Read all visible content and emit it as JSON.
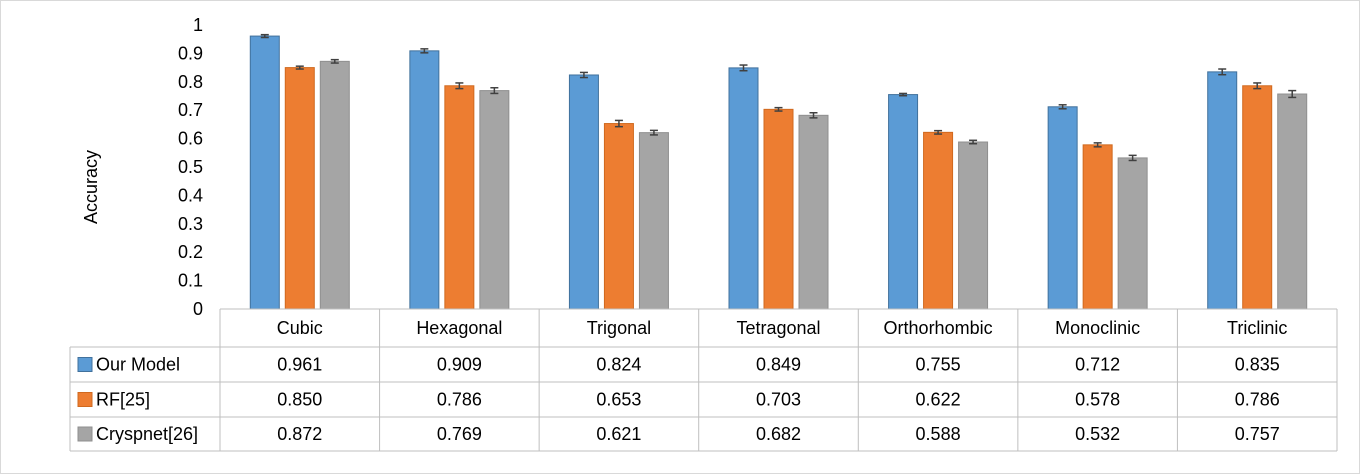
{
  "chart_data": {
    "type": "bar",
    "ylabel": "Accuracy",
    "ylim": [
      0,
      1
    ],
    "yticks": [
      "0",
      "0.1",
      "0.2",
      "0.3",
      "0.4",
      "0.5",
      "0.6",
      "0.7",
      "0.8",
      "0.9",
      "1"
    ],
    "categories": [
      "Cubic",
      "Hexagonal",
      "Trigonal",
      "Tetragonal",
      "Orthorhombic",
      "Monoclinic",
      "Triclinic"
    ],
    "series": [
      {
        "name": "Our Model",
        "color": "#5b9bd5",
        "values": [
          0.961,
          0.909,
          0.824,
          0.849,
          0.755,
          0.712,
          0.835
        ],
        "labels": [
          "0.961",
          "0.909",
          "0.824",
          "0.849",
          "0.755",
          "0.712",
          "0.835"
        ],
        "errors": [
          0.005,
          0.007,
          0.009,
          0.01,
          0.004,
          0.007,
          0.01
        ]
      },
      {
        "name": "RF[25]",
        "color": "#ed7d31",
        "values": [
          0.85,
          0.786,
          0.653,
          0.703,
          0.622,
          0.578,
          0.786
        ],
        "labels": [
          "0.850",
          "0.786",
          "0.653",
          "0.703",
          "0.622",
          "0.578",
          "0.786"
        ],
        "errors": [
          0.005,
          0.01,
          0.011,
          0.006,
          0.006,
          0.007,
          0.01
        ]
      },
      {
        "name": "Cryspnet[26]",
        "color": "#a5a5a5",
        "values": [
          0.872,
          0.769,
          0.621,
          0.682,
          0.588,
          0.532,
          0.757
        ],
        "labels": [
          "0.872",
          "0.769",
          "0.621",
          "0.682",
          "0.588",
          "0.532",
          "0.757"
        ],
        "errors": [
          0.006,
          0.01,
          0.008,
          0.009,
          0.006,
          0.009,
          0.012
        ]
      }
    ],
    "legend": "data-table",
    "grid": false
  }
}
